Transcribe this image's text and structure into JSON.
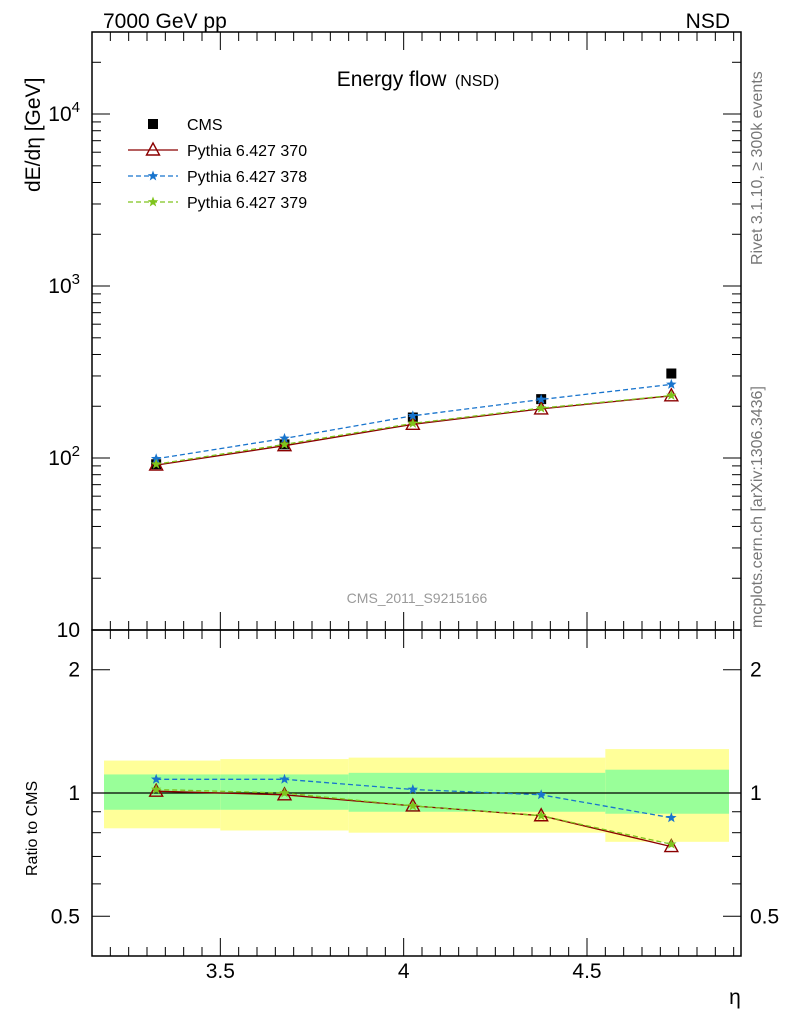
{
  "header": {
    "left": "7000 GeV pp",
    "right": "NSD"
  },
  "side_labels": {
    "rivet": "Rivet 3.1.10, ≥ 300k events",
    "mcplots": "mcplots.cern.ch [arXiv:1306.3436]"
  },
  "colors": {
    "cms": "#000000",
    "p370": "#8b0000",
    "p378": "#1874cd",
    "p379": "#7fc41d",
    "band_inner": "#99ff99",
    "band_outer": "#ffff99"
  },
  "chart_data": [
    {
      "type": "line",
      "title": "Energy flow",
      "title_sub": "(NSD)",
      "ylabel": "dE/dη [GeV]",
      "xlabel": "",
      "watermark": "CMS_2011_S9215166",
      "yscale": "log",
      "xlim": [
        3.15,
        4.92
      ],
      "ylim": [
        10,
        30000
      ],
      "yticks": [
        10,
        100,
        1000,
        10000
      ],
      "ytick_labels": [
        "10",
        "10",
        "10",
        "10"
      ],
      "ytick_sups": [
        "",
        "2",
        "3",
        "4"
      ],
      "grid": false,
      "legend_position": "top-left",
      "x": [
        3.325,
        3.675,
        4.025,
        4.375,
        4.73
      ],
      "series": [
        {
          "name": "CMS",
          "key": "cms",
          "marker": "square",
          "values": [
            92,
            120,
            172,
            220,
            310
          ]
        },
        {
          "name": "Pythia 6.427 370",
          "key": "p370",
          "marker": "triangle",
          "dash": "none",
          "values": [
            91,
            118,
            157,
            193,
            230
          ]
        },
        {
          "name": "Pythia 6.427 378",
          "key": "p378",
          "marker": "star",
          "dash": "dashed",
          "values": [
            99,
            130,
            176,
            219,
            268
          ]
        },
        {
          "name": "Pythia 6.427 379",
          "key": "p379",
          "marker": "star",
          "dash": "dashed",
          "values": [
            92,
            120,
            159,
            195,
            231
          ]
        }
      ]
    },
    {
      "type": "line",
      "title": "",
      "ylabel": "Ratio to CMS",
      "xlabel": "η",
      "yscale": "log",
      "xlim": [
        3.15,
        4.92
      ],
      "ylim": [
        0.4,
        2.5
      ],
      "yticks": [
        0.5,
        1,
        2
      ],
      "ytick_labels": [
        "0.5",
        "1",
        "2"
      ],
      "xticks": [
        3.5,
        4,
        4.5
      ],
      "xtick_labels": [
        "3.5",
        "4",
        "4.5"
      ],
      "bins": [
        [
          3.15,
          3.5
        ],
        [
          3.5,
          3.85
        ],
        [
          3.85,
          4.2
        ],
        [
          4.2,
          4.55
        ],
        [
          4.55,
          4.92
        ]
      ],
      "band_inner": [
        [
          0.91,
          1.11
        ],
        [
          0.91,
          1.11
        ],
        [
          0.9,
          1.12
        ],
        [
          0.9,
          1.12
        ],
        [
          0.89,
          1.14
        ]
      ],
      "band_outer": [
        [
          0.82,
          1.2
        ],
        [
          0.81,
          1.21
        ],
        [
          0.8,
          1.22
        ],
        [
          0.8,
          1.22
        ],
        [
          0.76,
          1.28
        ]
      ],
      "x": [
        3.325,
        3.675,
        4.025,
        4.375,
        4.73
      ],
      "series": [
        {
          "name": "Pythia 6.427 370",
          "key": "p370",
          "marker": "triangle",
          "dash": "none",
          "values": [
            1.01,
            0.99,
            0.93,
            0.88,
            0.74
          ]
        },
        {
          "name": "Pythia 6.427 378",
          "key": "p378",
          "marker": "star",
          "dash": "dashed",
          "values": [
            1.08,
            1.08,
            1.02,
            0.99,
            0.87
          ]
        },
        {
          "name": "Pythia 6.427 379",
          "key": "p379",
          "marker": "star",
          "dash": "dashed",
          "values": [
            1.02,
            1.0,
            0.93,
            0.88,
            0.75
          ]
        }
      ]
    }
  ]
}
